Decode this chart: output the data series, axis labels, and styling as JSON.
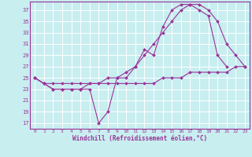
{
  "background_color": "#c8eef0",
  "grid_color": "#ffffff",
  "line_color": "#993399",
  "xlabel": "Windchill (Refroidissement éolien,°C)",
  "xlim": [
    -0.5,
    23.5
  ],
  "ylim": [
    16,
    38.5
  ],
  "yticks": [
    17,
    19,
    21,
    23,
    25,
    27,
    29,
    31,
    33,
    35,
    37
  ],
  "xticks": [
    0,
    1,
    2,
    3,
    4,
    5,
    6,
    7,
    8,
    9,
    10,
    11,
    12,
    13,
    14,
    15,
    16,
    17,
    18,
    19,
    20,
    21,
    22,
    23
  ],
  "line1_x": [
    0,
    1,
    2,
    3,
    4,
    5,
    6,
    7,
    8,
    9,
    10,
    11,
    12,
    13,
    14,
    15,
    16,
    17,
    18,
    19,
    20,
    21
  ],
  "line1_y": [
    25,
    24,
    23,
    23,
    23,
    23,
    23,
    17,
    19,
    25,
    25,
    27,
    30,
    29,
    34,
    37,
    38,
    38,
    37,
    36,
    29,
    27
  ],
  "line2_x": [
    0,
    1,
    2,
    3,
    4,
    5,
    6,
    7,
    8,
    9,
    10,
    11,
    12,
    13,
    14,
    15,
    16,
    17,
    18,
    19,
    20,
    21,
    22,
    23
  ],
  "line2_y": [
    25,
    24,
    23,
    23,
    23,
    23,
    24,
    24,
    25,
    25,
    26,
    27,
    29,
    31,
    33,
    35,
    37,
    38,
    38,
    37,
    35,
    31,
    29,
    27
  ],
  "line3_x": [
    0,
    1,
    2,
    3,
    4,
    5,
    6,
    7,
    8,
    9,
    10,
    11,
    12,
    13,
    14,
    15,
    16,
    17,
    18,
    19,
    20,
    21,
    22,
    23
  ],
  "line3_y": [
    25,
    24,
    24,
    24,
    24,
    24,
    24,
    24,
    24,
    24,
    24,
    24,
    24,
    24,
    25,
    25,
    25,
    26,
    26,
    26,
    26,
    26,
    27,
    27
  ]
}
